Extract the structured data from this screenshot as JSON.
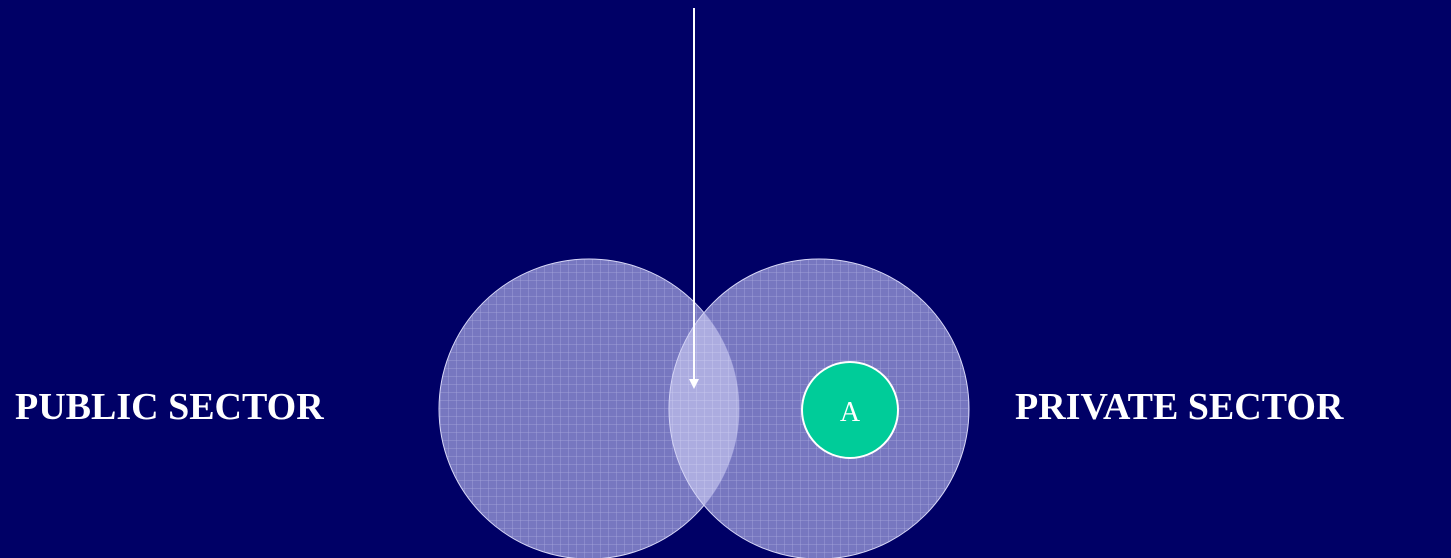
{
  "diagram": {
    "left_label": "PUBLIC SECTOR",
    "right_label": "PRIVATE SECTOR",
    "marker_label": "A",
    "colors": {
      "background": "#000066",
      "circle_fill": "#9a9ad6",
      "grid_line": "#c8c8f0",
      "marker_fill": "#00cc99",
      "text": "#ffffff"
    }
  }
}
